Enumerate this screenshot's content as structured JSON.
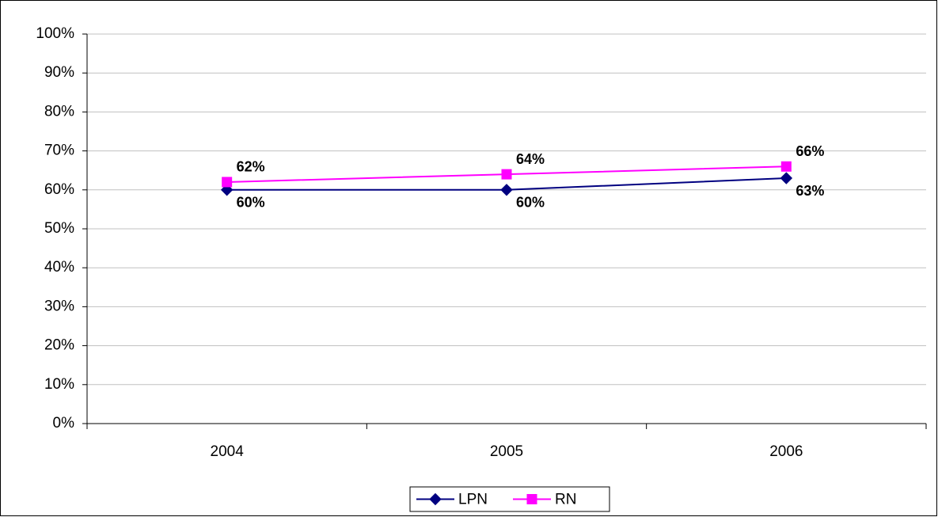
{
  "chart_data": {
    "type": "line",
    "categories": [
      "2004",
      "2005",
      "2006"
    ],
    "series": [
      {
        "name": "LPN",
        "color": "#000080",
        "marker": "diamond",
        "values": [
          60,
          60,
          63
        ],
        "value_labels": [
          "60%",
          "60%",
          "63%"
        ]
      },
      {
        "name": "RN",
        "color": "#ff00ff",
        "marker": "square",
        "values": [
          62,
          64,
          66
        ],
        "value_labels": [
          "62%",
          "64%",
          "66%"
        ]
      }
    ],
    "ylim": [
      0,
      100
    ],
    "yticks": [
      {
        "value": 0,
        "label": "0%"
      },
      {
        "value": 10,
        "label": "10%"
      },
      {
        "value": 20,
        "label": "20%"
      },
      {
        "value": 30,
        "label": "30%"
      },
      {
        "value": 40,
        "label": "40%"
      },
      {
        "value": 50,
        "label": "50%"
      },
      {
        "value": 60,
        "label": "60%"
      },
      {
        "value": 70,
        "label": "70%"
      },
      {
        "value": 80,
        "label": "80%"
      },
      {
        "value": 90,
        "label": "90%"
      },
      {
        "value": 100,
        "label": "100%"
      }
    ],
    "grid": true,
    "legend": "bottom"
  }
}
